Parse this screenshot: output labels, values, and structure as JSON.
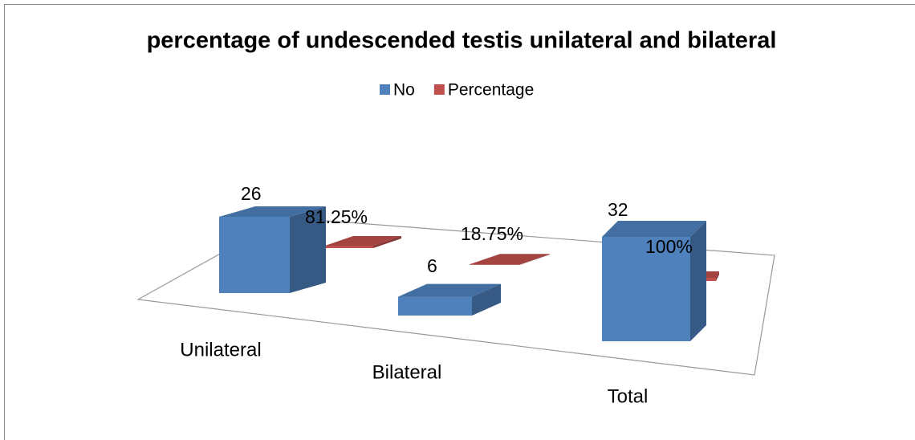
{
  "chart_data": {
    "type": "bar3d",
    "title": "percentage of undescended testis unilateral and bilateral",
    "categories": [
      "Unilateral",
      "Bilateral",
      "Total"
    ],
    "series": [
      {
        "name": "No",
        "color": "#4f81bd",
        "values": [
          26,
          6,
          32
        ]
      },
      {
        "name": "Percentage",
        "color": "#c0504d",
        "values": [
          0.8125,
          0.1875,
          1
        ],
        "value_labels": [
          "81.25%",
          "18.75%",
          "100%"
        ]
      }
    ],
    "legend": "top"
  }
}
